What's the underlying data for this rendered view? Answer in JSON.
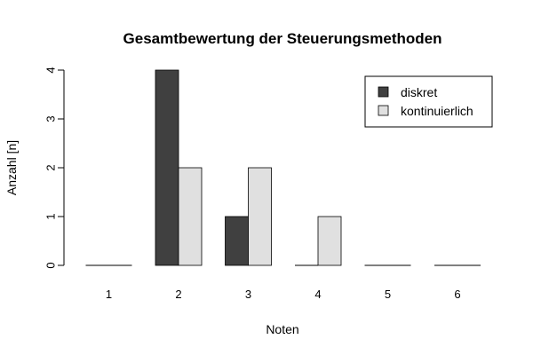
{
  "chart_data": {
    "type": "bar",
    "title": "Gesamtbewertung der Steuerungsmethoden",
    "xlabel": "Noten",
    "ylabel": "Anzahl [n]",
    "categories": [
      "1",
      "2",
      "3",
      "4",
      "5",
      "6"
    ],
    "series": [
      {
        "name": "diskret",
        "values": [
          0,
          4,
          1,
          0,
          0,
          0
        ],
        "color": "#404040"
      },
      {
        "name": "kontinuierlich",
        "values": [
          0,
          2,
          2,
          1,
          0,
          0
        ],
        "color": "#e0e0e0"
      }
    ],
    "ylim": [
      0,
      4
    ],
    "yticks": [
      "0",
      "1",
      "2",
      "3",
      "4"
    ],
    "grid": false,
    "legend": "top-right"
  }
}
